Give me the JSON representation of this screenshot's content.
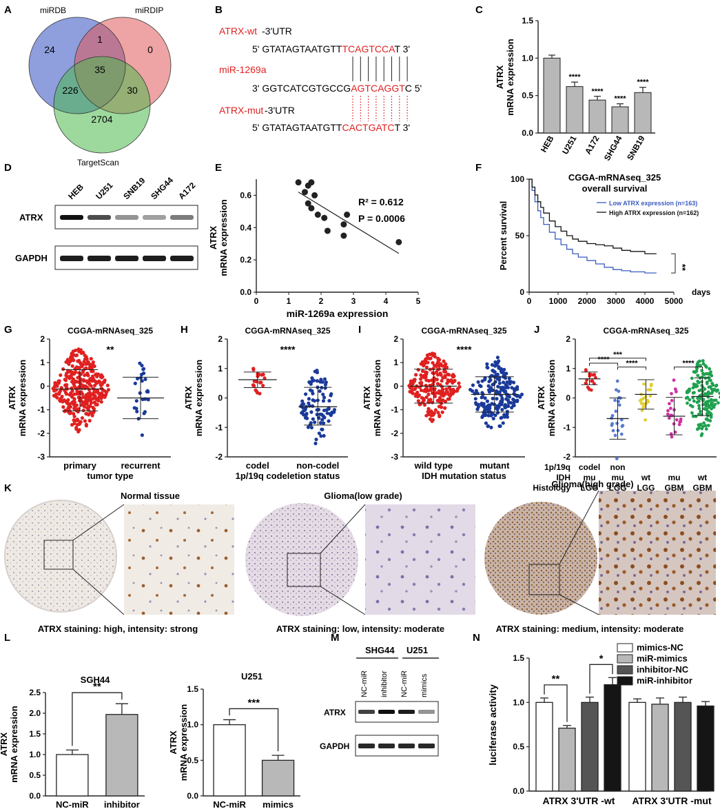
{
  "panels": {
    "A": "A",
    "B": "B",
    "C": "C",
    "D": "D",
    "E": "E",
    "F": "F",
    "G": "G",
    "H": "H",
    "I": "I",
    "J": "J",
    "K": "K",
    "L": "L",
    "M": "M",
    "N": "N"
  },
  "venn": {
    "sets": [
      "miRDB",
      "miRDIP",
      "TargetScan"
    ],
    "counts": {
      "a_only": "24",
      "ab": "1",
      "b_only": "0",
      "abc": "35",
      "ac": "226",
      "bc": "30",
      "c_only": "2704"
    },
    "colors": {
      "a": "#4a62c8",
      "b": "#e05a5a",
      "c": "#4cb84c"
    }
  },
  "seq": {
    "wt_label": "ATRX-wt",
    "wt_suffix": "-3'UTR",
    "wt_prefix": "5' GTATAGTAATGTT",
    "wt_site": "TCAGTCCA",
    "wt_end": "T 3'",
    "mir_label": "miR-1269a",
    "mir_prefix": "3' GGTCATCGTGCCG",
    "mir_site": "AGTCAGGT",
    "mir_end": "C 5'",
    "mut_label": "ATRX-mut",
    "mut_suffix": "-3'UTR",
    "mut_prefix": "5' GTATAGTAATGTT",
    "mut_site": "CACTGATC",
    "mut_end": "T 3'",
    "highlight_color": "#e02020"
  },
  "blotD": {
    "lanes": [
      "HEB",
      "U251",
      "SNB19",
      "SHG44",
      "A172"
    ],
    "rows": [
      "ATRX",
      "GAPDH"
    ]
  },
  "blotM": {
    "groups": [
      "SHG44",
      "U251"
    ],
    "lanes": [
      "NC-miR",
      "inhibitor",
      "NC-miR",
      "mimics"
    ],
    "rows": [
      "ATRX",
      "GAPDH"
    ]
  },
  "tissue": {
    "normal_title": "Normal tissue",
    "normal_caption": "ATRX staining: high, intensity: strong",
    "low_title": "Glioma(low grade)",
    "low_caption": "ATRX staining: low, intensity: moderate",
    "high_title": "Glioma(high grade)",
    "high_caption": "ATRX staining: medium, intensity: moderate"
  },
  "chart_data": [
    {
      "panel": "C",
      "type": "bar",
      "categories": [
        "HEB",
        "U251",
        "A172",
        "SHG44",
        "SNB19"
      ],
      "values": [
        1.0,
        0.62,
        0.44,
        0.35,
        0.54
      ],
      "errors": [
        0.04,
        0.06,
        0.05,
        0.04,
        0.07
      ],
      "significance": [
        "",
        "****",
        "****",
        "****",
        "****"
      ],
      "ylabel": "ATRX\nmRNA expression",
      "ylim": [
        0,
        1.5
      ],
      "yticks": [
        "0.0",
        "0.5",
        "1.0",
        "1.5"
      ]
    },
    {
      "panel": "E",
      "type": "scatter",
      "x": [
        1.3,
        1.5,
        1.6,
        1.7,
        1.8,
        1.6,
        1.7,
        1.9,
        2.1,
        2.2,
        2.7,
        2.8,
        2.7,
        4.4
      ],
      "y": [
        0.68,
        0.62,
        0.66,
        0.68,
        0.6,
        0.55,
        0.52,
        0.48,
        0.46,
        0.38,
        0.42,
        0.48,
        0.35,
        0.31
      ],
      "fit": {
        "x": [
          1.3,
          4.4
        ],
        "y": [
          0.62,
          0.24
        ]
      },
      "xlabel": "miR-1269a expression",
      "ylabel": "ATRX\nmRNA expression",
      "xlim": [
        0,
        5
      ],
      "ylim": [
        0,
        0.7
      ],
      "xticks": [
        "0",
        "1",
        "2",
        "3",
        "4",
        "5"
      ],
      "yticks": [
        "0.0",
        "0.2",
        "0.4",
        "0.6"
      ],
      "annotation_r2": "R² = 0.612",
      "annotation_p": "P = 0.0006"
    },
    {
      "panel": "F",
      "type": "line",
      "title": "CGGA-mRNAseq_325",
      "subtitle": "overall survival",
      "ylabel": "Percent survival",
      "xlabel": "days",
      "xticks": [
        "0",
        "1000",
        "2000",
        "3000",
        "4000",
        "5000"
      ],
      "yticks": [
        "0",
        "50",
        "100"
      ],
      "xlim": [
        0,
        5000
      ],
      "ylim": [
        0,
        100
      ],
      "significance": "**",
      "series": [
        {
          "name": "Low ATRX expression (n=163)",
          "color": "#3a5bbf",
          "x": [
            0,
            100,
            200,
            300,
            400,
            500,
            700,
            900,
            1100,
            1300,
            1500,
            1700,
            2000,
            2300,
            2600,
            2900,
            3200,
            3500,
            4000,
            4400
          ],
          "y": [
            100,
            90,
            80,
            72,
            66,
            60,
            53,
            47,
            42,
            38,
            34,
            31,
            28,
            25,
            22,
            20,
            19,
            18,
            17,
            17
          ]
        },
        {
          "name": "High ATRX expression (n=162)",
          "color": "#111111",
          "x": [
            0,
            100,
            200,
            300,
            400,
            500,
            700,
            900,
            1100,
            1300,
            1500,
            1700,
            2000,
            2300,
            2600,
            2900,
            3200,
            3500,
            4000,
            4400
          ],
          "y": [
            100,
            93,
            86,
            80,
            75,
            70,
            63,
            58,
            54,
            50,
            47,
            45,
            43,
            42,
            41,
            39,
            37,
            36,
            34,
            34
          ]
        }
      ]
    },
    {
      "panel": "G",
      "type": "scatter",
      "title": "CGGA-mRNAseq_325",
      "categories": [
        "primary",
        "recurrent"
      ],
      "xlabel": "tumor type",
      "ylabel": "ATRX\nmRNA expression",
      "means": [
        -0.12,
        -0.5
      ],
      "sd_low": [
        -1.05,
        -1.38
      ],
      "sd_high": [
        0.7,
        0.38
      ],
      "colors": [
        "#e02020",
        "#1a3a9a"
      ],
      "significance": "**",
      "ylim": [
        -3,
        2
      ],
      "yticks": [
        "-3",
        "-2",
        "-1",
        "0",
        "1",
        "2"
      ]
    },
    {
      "panel": "H",
      "type": "scatter",
      "title": "CGGA-mRNAseq_325",
      "categories": [
        "codel",
        "non-codel"
      ],
      "xlabel": "1p/19q codeletion status",
      "ylabel": "ATRX\nmRNA expression",
      "means": [
        0.62,
        -0.3
      ],
      "sd_low": [
        0.35,
        -0.92
      ],
      "sd_high": [
        0.88,
        0.36
      ],
      "colors": [
        "#e02020",
        "#1a3a9a"
      ],
      "significance": "****",
      "ylim": [
        -2,
        2
      ],
      "yticks": [
        "-2",
        "-1",
        "0",
        "1",
        "2"
      ]
    },
    {
      "panel": "I",
      "type": "scatter",
      "title": "CGGA-mRNAseq_325",
      "categories": [
        "wild type",
        "mutant"
      ],
      "xlabel": "IDH mutation status",
      "ylabel": "ATRX\nmRNA expression",
      "means": [
        0.0,
        -0.35
      ],
      "sd_low": [
        -0.72,
        -1.1
      ],
      "sd_high": [
        0.72,
        0.4
      ],
      "colors": [
        "#e02020",
        "#1a3a9a"
      ],
      "significance": "****",
      "ylim": [
        -3,
        2
      ],
      "yticks": [
        "-3",
        "-2",
        "-1",
        "0",
        "1",
        "2"
      ]
    },
    {
      "panel": "J",
      "type": "scatter",
      "title": "CGGA-mRNAseq_325",
      "groups": [
        "codel mu LGG",
        "non mu LGG",
        "wt LGG",
        "mu GBM",
        "wt GBM"
      ],
      "row_labels": [
        "1p/19q",
        "IDH",
        "Histology"
      ],
      "row_values": [
        [
          "codel",
          "non",
          "",
          "",
          ""
        ],
        [
          "mu",
          "mu",
          "wt",
          "mu",
          "wt"
        ],
        [
          "LGG",
          "LGG",
          "LGG",
          "GBM",
          "GBM"
        ]
      ],
      "ylabel": "ATRX\nmRNA expression",
      "means": [
        0.65,
        -0.7,
        0.12,
        -0.62,
        0.05
      ],
      "sd_low": [
        0.45,
        -1.4,
        -0.38,
        -1.25,
        -0.6
      ],
      "sd_high": [
        0.88,
        0.0,
        0.62,
        0.02,
        0.68
      ],
      "colors": [
        "#e02020",
        "#5a7ad0",
        "#e0d030",
        "#d030a0",
        "#20a050"
      ],
      "brackets": [
        "****",
        "***",
        "****",
        "****"
      ],
      "ylim": [
        -2,
        2
      ],
      "yticks": [
        "-2",
        "-1",
        "0",
        "1",
        "2"
      ]
    },
    {
      "panel": "L1",
      "type": "bar",
      "title": "SGH44",
      "categories": [
        "NC-miR",
        "inhibitor"
      ],
      "values": [
        1.0,
        1.97
      ],
      "errors": [
        0.11,
        0.26
      ],
      "ylabel": "ATRX\nmRNA expression",
      "ylim": [
        0,
        2.5
      ],
      "yticks": [
        "0.0",
        "0.5",
        "1.0",
        "1.5",
        "2.0",
        "2.5"
      ],
      "significance": "**"
    },
    {
      "panel": "L2",
      "type": "bar",
      "title": "U251",
      "categories": [
        "NC-miR",
        "mimics"
      ],
      "values": [
        1.0,
        0.5
      ],
      "errors": [
        0.07,
        0.07
      ],
      "ylabel": "ATRX\nmRNA expression",
      "ylim": [
        0,
        1.5
      ],
      "yticks": [
        "0.0",
        "0.5",
        "1.0",
        "1.5"
      ],
      "significance": "***"
    },
    {
      "panel": "N",
      "type": "bar",
      "categories": [
        "ATRX 3'UTR -wt",
        "ATRX 3'UTR -mut"
      ],
      "series": [
        {
          "name": "mimics-NC",
          "values": [
            1.0,
            1.0
          ],
          "errors": [
            0.05,
            0.04
          ]
        },
        {
          "name": "miR-mimics",
          "values": [
            0.71,
            0.98
          ],
          "errors": [
            0.03,
            0.07
          ]
        },
        {
          "name": "inhibitor-NC",
          "values": [
            1.0,
            1.0
          ],
          "errors": [
            0.06,
            0.06
          ]
        },
        {
          "name": "miR-inhibitor",
          "values": [
            1.2,
            0.96
          ],
          "errors": [
            0.08,
            0.05
          ]
        }
      ],
      "colors": [
        "#ffffff",
        "#b8b8b8",
        "#555555",
        "#151515"
      ],
      "ylabel": "luciferase activity",
      "ylim": [
        0,
        1.5
      ],
      "yticks": [
        "0.0",
        "0.5",
        "1.0",
        "1.5"
      ],
      "significance": [
        "**",
        "*"
      ]
    }
  ]
}
